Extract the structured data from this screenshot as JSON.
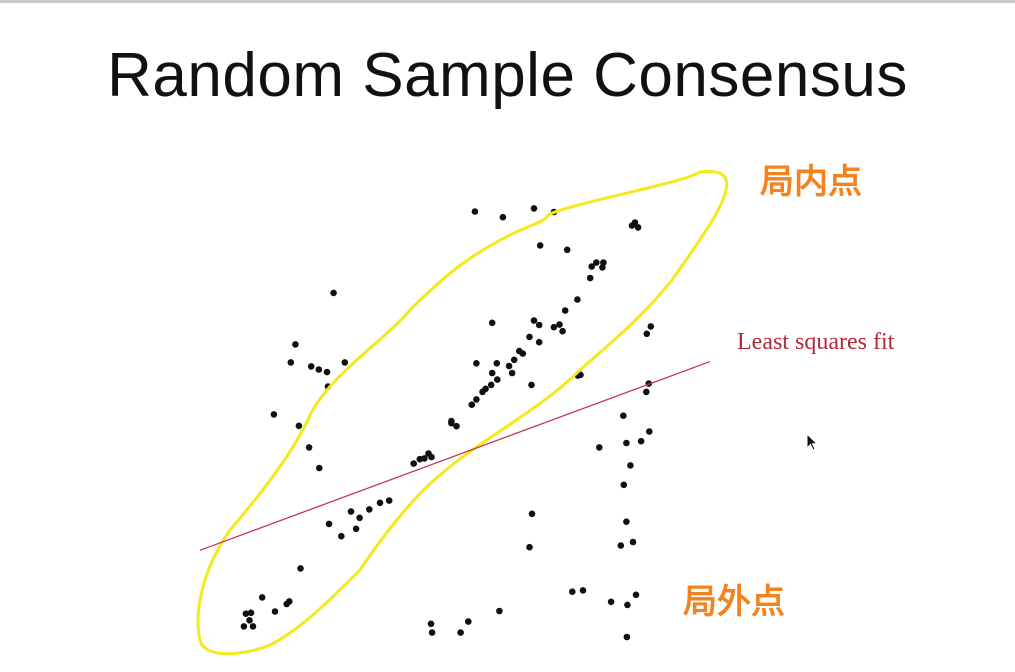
{
  "slide": {
    "title": "Random Sample Consensus"
  },
  "labels": {
    "fit_line": "Least squares fit",
    "inliers": "局内点",
    "outliers": "局外点"
  },
  "colors": {
    "points": "#111111",
    "fit_line": "#c0394d",
    "fit_label": "#b5283a",
    "inlier_boundary": "#f2ea1a",
    "annotation": "#f4821f"
  },
  "icons": {
    "cursor": "mouse-pointer-icon"
  },
  "chart_data": {
    "type": "scatter",
    "title": "",
    "xlabel": "",
    "ylabel": "",
    "fit_line": {
      "name": "Least squares fit",
      "x": [
        0,
        100
      ],
      "y": [
        19.7,
        62.6
      ]
    },
    "points": [
      [
        9.7,
        3.8
      ],
      [
        9.0,
        5.3
      ],
      [
        10.0,
        5.5
      ],
      [
        12.2,
        9.0
      ],
      [
        17.5,
        8.1
      ],
      [
        8.6,
        2.4
      ],
      [
        10.4,
        2.4
      ],
      [
        14.7,
        5.8
      ],
      [
        17.0,
        7.5
      ],
      [
        19.7,
        15.6
      ],
      [
        25.3,
        25.7
      ],
      [
        27.7,
        22.9
      ],
      [
        30.6,
        24.6
      ],
      [
        33.2,
        29.0
      ],
      [
        31.3,
        27.1
      ],
      [
        29.6,
        28.5
      ],
      [
        35.3,
        30.5
      ],
      [
        37.1,
        31.0
      ],
      [
        41.9,
        39.4
      ],
      [
        43.1,
        40.4
      ],
      [
        44.8,
        41.7
      ],
      [
        44.0,
        40.6
      ],
      [
        45.4,
        40.9
      ],
      [
        49.3,
        48.6
      ],
      [
        49.3,
        49.1
      ],
      [
        50.3,
        47.9
      ],
      [
        53.3,
        52.8
      ],
      [
        54.2,
        54.0
      ],
      [
        55.4,
        55.7
      ],
      [
        56.0,
        56.4
      ],
      [
        57.1,
        57.3
      ],
      [
        58.3,
        58.5
      ],
      [
        57.3,
        60.0
      ],
      [
        58.2,
        62.2
      ],
      [
        60.6,
        61.6
      ],
      [
        61.2,
        60.0
      ],
      [
        62.6,
        65.0
      ],
      [
        63.3,
        64.4
      ],
      [
        64.6,
        68.2
      ],
      [
        66.5,
        67.0
      ],
      [
        66.5,
        70.9
      ],
      [
        69.4,
        70.4
      ],
      [
        71.6,
        74.2
      ],
      [
        76.5,
        81.6
      ],
      [
        78.9,
        84.0
      ],
      [
        77.7,
        85.1
      ],
      [
        76.8,
        84.2
      ],
      [
        79.1,
        85.1
      ],
      [
        84.7,
        93.5
      ],
      [
        85.9,
        93.1
      ],
      [
        85.3,
        94.2
      ],
      [
        53.9,
        96.7
      ],
      [
        59.4,
        95.4
      ],
      [
        65.5,
        97.4
      ],
      [
        69.4,
        96.6
      ],
      [
        66.7,
        89.0
      ],
      [
        72.0,
        88.0
      ],
      [
        26.2,
        78.2
      ],
      [
        57.3,
        71.4
      ],
      [
        65.5,
        71.9
      ],
      [
        70.5,
        71.0
      ],
      [
        71.1,
        69.5
      ],
      [
        74.0,
        76.7
      ],
      [
        61.6,
        63.0
      ],
      [
        65.0,
        57.3
      ],
      [
        74.1,
        59.4
      ],
      [
        74.6,
        59.6
      ],
      [
        54.2,
        62.2
      ],
      [
        18.7,
        66.5
      ],
      [
        17.8,
        62.4
      ],
      [
        21.8,
        61.5
      ],
      [
        23.3,
        60.8
      ],
      [
        24.9,
        60.2
      ],
      [
        25.1,
        56.9
      ],
      [
        28.4,
        62.4
      ],
      [
        14.5,
        50.6
      ],
      [
        19.4,
        48.0
      ],
      [
        21.4,
        43.1
      ],
      [
        23.4,
        38.4
      ],
      [
        65.1,
        28.0
      ],
      [
        64.6,
        20.4
      ],
      [
        73.0,
        10.3
      ],
      [
        75.1,
        10.6
      ],
      [
        80.6,
        8.0
      ],
      [
        58.7,
        5.9
      ],
      [
        52.6,
        3.5
      ],
      [
        45.3,
        3.0
      ],
      [
        51.1,
        1.0
      ],
      [
        45.5,
        1.0
      ],
      [
        83.1,
        34.6
      ],
      [
        78.3,
        43.1
      ],
      [
        83.0,
        50.3
      ],
      [
        83.6,
        44.1
      ],
      [
        86.5,
        44.5
      ],
      [
        84.4,
        39.0
      ],
      [
        83.6,
        26.2
      ],
      [
        84.9,
        21.6
      ],
      [
        85.5,
        9.6
      ],
      [
        83.8,
        7.3
      ],
      [
        83.7,
        0.0
      ],
      [
        82.5,
        20.8
      ],
      [
        88.1,
        46.7
      ],
      [
        88.0,
        57.6
      ],
      [
        87.5,
        55.7
      ],
      [
        87.6,
        68.9
      ],
      [
        88.4,
        70.6
      ]
    ]
  }
}
